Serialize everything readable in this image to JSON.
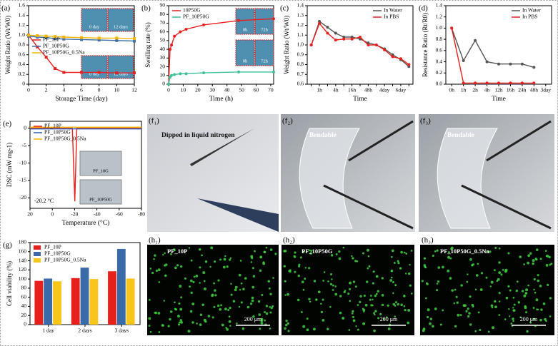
{
  "chart_data": [
    {
      "type": "line",
      "label": "(a)",
      "xlabel": "Storage Time (day)",
      "ylabel": "Weight Ratio (Wt/W0)",
      "x": [
        0,
        1,
        2,
        3,
        4,
        6,
        8,
        10,
        12
      ],
      "xlim": [
        0,
        12
      ],
      "xticks": [
        0,
        2,
        4,
        6,
        8,
        10,
        12
      ],
      "ylim": [
        0,
        1.6
      ],
      "yticks": [
        0,
        0.2,
        0.4,
        0.6,
        0.8,
        {
          "value": 1,
          "label": "1.0"
        },
        1.2,
        1.4,
        1.6
      ],
      "legend": "center left",
      "insets": [
        "0 day",
        "12 days",
        "0 day",
        "12 days"
      ],
      "series": [
        {
          "name": "PF_10P",
          "color": "#e8201d",
          "values": [
            1.0,
            0.76,
            0.55,
            0.32,
            0.24,
            0.24,
            0.24,
            0.23,
            0.23
          ]
        },
        {
          "name": "PF_10P50G",
          "color": "#3d6fa8",
          "values": [
            0.98,
            0.96,
            0.95,
            0.93,
            0.92,
            0.91,
            0.9,
            0.89,
            0.88
          ]
        },
        {
          "name": "PF_10P50G_0.5Na",
          "color": "#f4b400",
          "values": [
            1.0,
            0.99,
            0.98,
            0.97,
            0.96,
            0.95,
            0.94,
            0.94,
            0.93
          ]
        }
      ]
    },
    {
      "type": "line",
      "label": "(b)",
      "xlabel": "Time (h)",
      "ylabel": "Swelling rate (%)",
      "x": [
        0,
        1,
        2,
        4,
        8,
        12,
        24,
        48,
        72
      ],
      "xlim": [
        0,
        72
      ],
      "xticks": [
        0,
        10,
        20,
        30,
        40,
        50,
        60,
        70
      ],
      "ylim": [
        0,
        90
      ],
      "yticks": [
        0,
        10,
        20,
        30,
        40,
        50,
        60,
        70,
        80,
        90
      ],
      "legend": "upper left",
      "insets": [
        "0h",
        "72h",
        "0h",
        "72h"
      ],
      "series": [
        {
          "name": "10P50G",
          "color": "#e8201d",
          "values": [
            0,
            40,
            45,
            55,
            60,
            63,
            68,
            73,
            75
          ]
        },
        {
          "name": "PF_10P50G",
          "color": "#3dbf9a",
          "values": [
            0,
            8,
            10,
            11,
            12,
            12,
            13,
            14,
            14
          ]
        }
      ]
    },
    {
      "type": "line",
      "label": "(c)",
      "xlabel": "Time",
      "ylabel": "Weight Ratio (Wt/W0)",
      "categories": [
        null,
        "1h",
        null,
        "4h",
        null,
        "16h",
        null,
        "48h",
        null,
        "4day",
        null,
        "6day",
        null
      ],
      "ylim": [
        0.6,
        1.4
      ],
      "yticks": [
        0.6,
        0.7,
        0.8,
        0.9,
        {
          "value": 1,
          "label": "1.0"
        },
        1.1,
        1.2,
        1.3,
        1.4
      ],
      "legend": "upper right",
      "series": [
        {
          "name": "In Water",
          "color": "#555555",
          "values": [
            1.0,
            1.24,
            1.18,
            1.12,
            1.08,
            1.08,
            1.06,
            1.02,
            1.0,
            0.96,
            0.9,
            0.85,
            0.78
          ]
        },
        {
          "name": "In PBS",
          "color": "#e8201d",
          "values": [
            1.0,
            1.22,
            1.12,
            1.05,
            1.06,
            1.06,
            1.08,
            1.0,
            1.0,
            0.95,
            0.88,
            0.86,
            0.8
          ]
        }
      ]
    },
    {
      "type": "line",
      "label": "(d)",
      "xlabel": "Time",
      "ylabel": "Resistance Ratio (Rt/R0)",
      "categories": [
        "0h",
        "1h",
        "2h",
        "4h",
        "12h",
        "16h",
        "24h",
        "48h",
        "3day"
      ],
      "ylim": [
        0,
        1.4
      ],
      "yticks": [
        {
          "value": 0,
          "label": "0.0"
        },
        0.2,
        0.4,
        0.6,
        0.8,
        {
          "value": 1,
          "label": "1.0"
        },
        1.2,
        1.4
      ],
      "legend": "upper right",
      "series": [
        {
          "name": "In Water",
          "color": "#555555",
          "values": [
            1.0,
            0.42,
            0.78,
            0.4,
            0.36,
            0.36,
            0.36,
            0.3,
            null
          ]
        },
        {
          "name": "In PBS",
          "color": "#e8201d",
          "values": [
            1.0,
            0.02,
            0.02,
            0.02,
            0.02,
            0.02,
            0.02,
            0.02,
            null
          ]
        }
      ]
    },
    {
      "type": "line",
      "label": "(e)",
      "xlabel": "Temperature (°C)",
      "ylabel": "DSC (mW mg-1)",
      "xlim": [
        20,
        -80
      ],
      "xticks": [
        20,
        0,
        -20,
        -40,
        -60,
        -80
      ],
      "ylim": [
        -23,
        2
      ],
      "yticks": [
        -20,
        -15,
        -10,
        -5,
        0
      ],
      "legend": "upper left",
      "insets": [
        "PF_10G",
        "PF_10P50G"
      ],
      "annotation": "-20.2 °C",
      "series": [
        {
          "name": "PF_10P",
          "color": "#e8201d",
          "x": [
            20,
            -18,
            -20.2,
            -22,
            -80
          ],
          "values": [
            0,
            0,
            -21,
            0,
            0
          ]
        },
        {
          "name": "PF_10P50G",
          "color": "#2a5caa",
          "x": [
            20,
            -80
          ],
          "values": [
            -0.2,
            -0.2
          ]
        },
        {
          "name": "PF_10P50G_0.5Na",
          "color": "#f4b400",
          "x": [
            20,
            -80
          ],
          "values": [
            0.3,
            0.3
          ]
        }
      ]
    },
    {
      "type": "bar",
      "label": "(g)",
      "ylabel": "Cell viability (%)",
      "categories": [
        "1 day",
        "2 days",
        "3 days"
      ],
      "ylim": [
        0,
        180
      ],
      "yticks": [
        0,
        20,
        40,
        60,
        80,
        100,
        120,
        140,
        160,
        180
      ],
      "legend": "upper left",
      "series": [
        {
          "name": "PF_10P",
          "color": "#e8201d",
          "values": [
            96,
            102,
            117
          ]
        },
        {
          "name": "PF_10P50G",
          "color": "#3b6aa8",
          "values": [
            101,
            125,
            166
          ]
        },
        {
          "name": "PF_10P50G_0.5Na",
          "color": "#f9c51b",
          "values": [
            95,
            100,
            101
          ]
        }
      ]
    }
  ],
  "photos": [
    {
      "label": "(f₁)",
      "caption": "Dipped in liquid nitrogen"
    },
    {
      "label": "(f₂)",
      "caption": "Bendable"
    },
    {
      "label": "(f₃)",
      "caption": "Bendable"
    },
    {
      "label": "(h₁)",
      "caption": "PF_10P",
      "scale": "200 μm"
    },
    {
      "label": "(h₂)",
      "caption": "PF_10P50G",
      "scale": "200 μm"
    },
    {
      "label": "(h₃)",
      "caption": "PF_10P50G_0.5Na",
      "scale": "200 μm"
    }
  ]
}
